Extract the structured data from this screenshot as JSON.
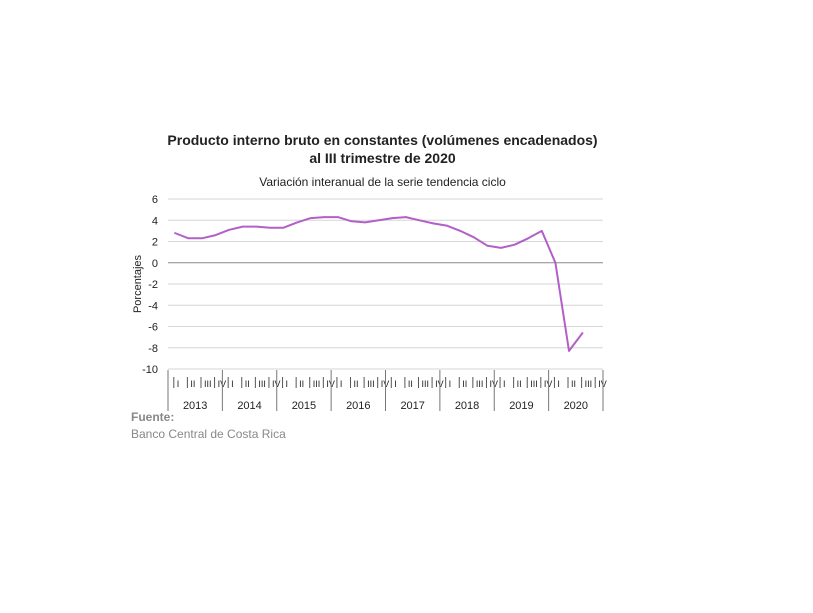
{
  "chart_data": {
    "type": "line",
    "title_line1": "Producto interno bruto en constantes (volúmenes encadenados)",
    "title_line2": "al III trimestre de 2020",
    "subtitle": "Variación interanual de la serie tendencia ciclo",
    "ylabel": "Porcentajes",
    "ylim": [
      -10,
      6
    ],
    "yticks": [
      6,
      4,
      2,
      0,
      -2,
      -4,
      -6,
      -8,
      -10
    ],
    "grid": true,
    "quarter_labels": [
      "I",
      "II",
      "III",
      "IV"
    ],
    "years": [
      "2013",
      "2014",
      "2015",
      "2016",
      "2017",
      "2018",
      "2019",
      "2020"
    ],
    "series": [
      {
        "color": "#b260c8",
        "values": [
          2.8,
          2.3,
          2.3,
          2.6,
          3.1,
          3.4,
          3.4,
          3.3,
          3.3,
          3.8,
          4.2,
          4.3,
          4.3,
          3.9,
          3.8,
          4.0,
          4.2,
          4.3,
          4.0,
          3.7,
          3.5,
          3.0,
          2.4,
          1.6,
          1.4,
          1.7,
          2.3,
          3.0,
          0.0,
          -8.3,
          -6.6
        ]
      }
    ]
  },
  "source": {
    "label": "Fuente:",
    "text": "Banco Central de Costa Rica"
  }
}
